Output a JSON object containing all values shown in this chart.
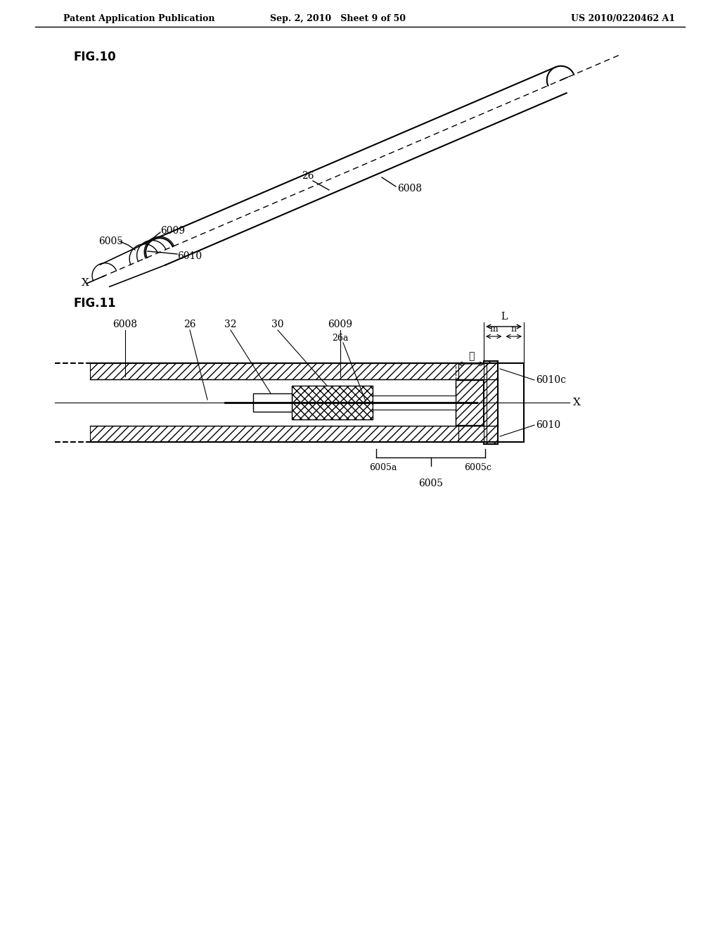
{
  "bg_color": "#ffffff",
  "header_left": "Patent Application Publication",
  "header_center": "Sep. 2, 2010   Sheet 9 of 50",
  "header_right": "US 2010/0220462 A1",
  "fig10_label": "FIG.10",
  "fig11_label": "FIG.11",
  "label_color": "#000000",
  "line_color": "#000000"
}
